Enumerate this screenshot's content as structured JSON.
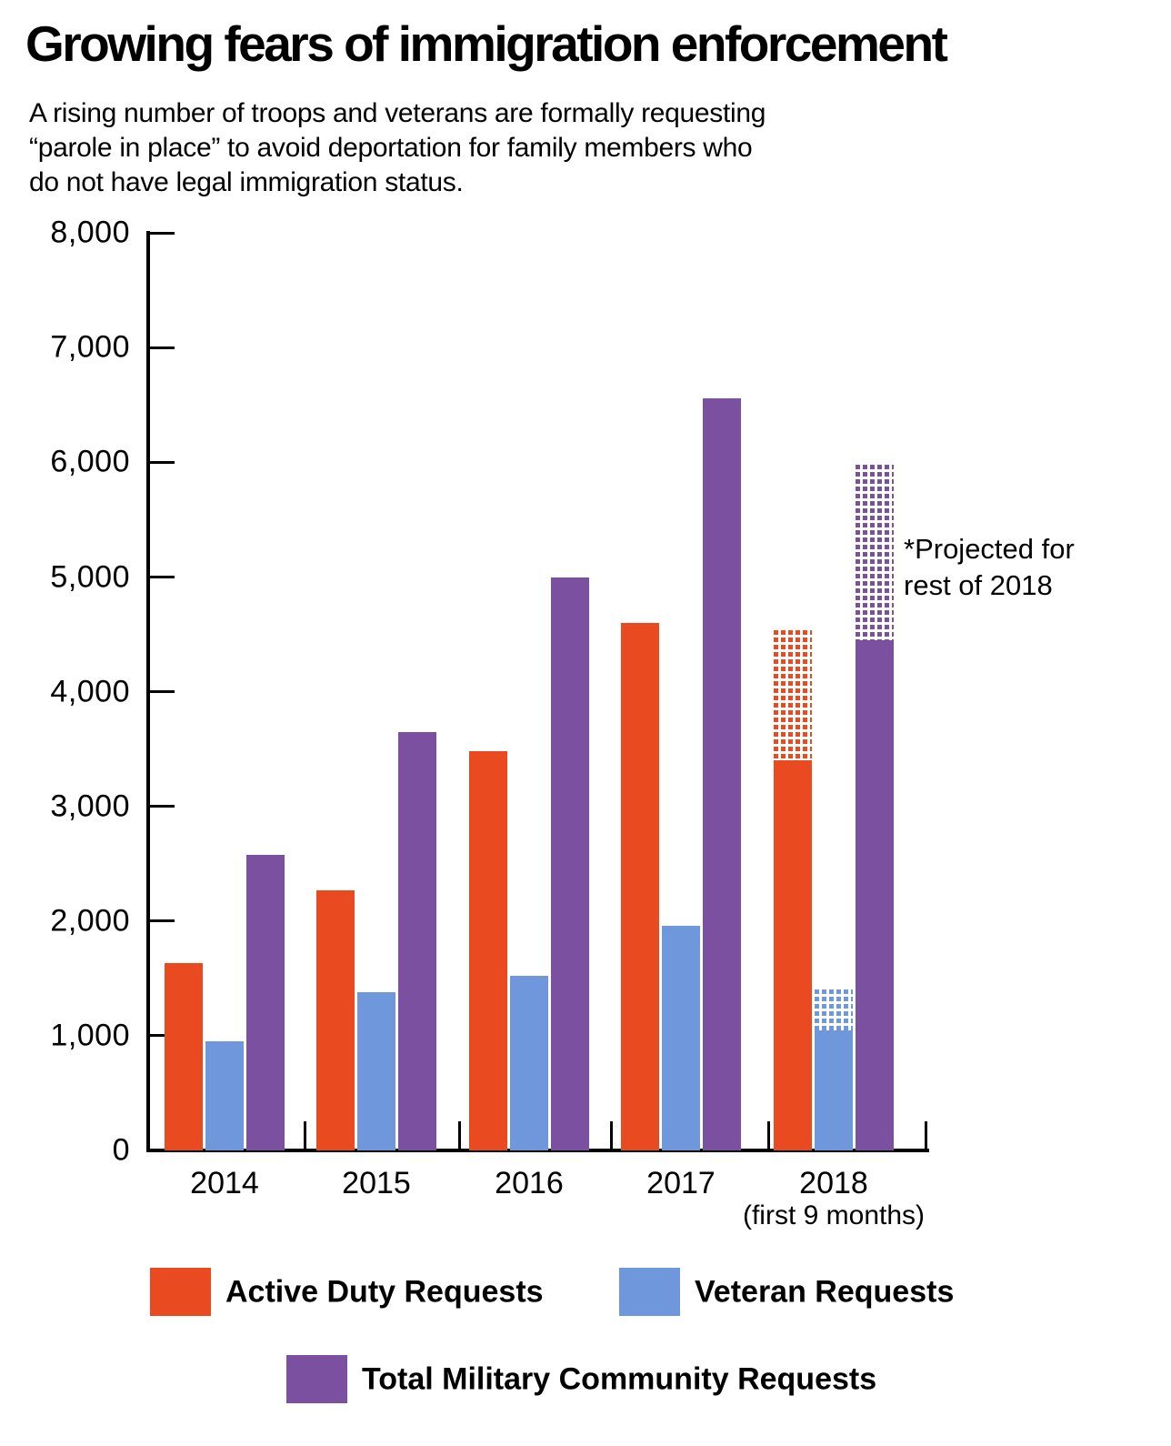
{
  "title": "Growing fears of immigration enforcement",
  "subtitle_lines": [
    "A rising number of troops and veterans are formally requesting",
    "“parole in place” to avoid deportation for family members who",
    "do not have legal immigration status."
  ],
  "annotation": {
    "line1": "*Projected for",
    "line2": "rest of 2018"
  },
  "colors": {
    "active_duty": "#EA4A1F",
    "veteran": "#6F97DC",
    "total": "#7C50A1",
    "axis": "#000000"
  },
  "legend": {
    "active_label": "Active Duty Requests",
    "veteran_label": "Veteran Requests",
    "total_label": "Total Military Community Requests"
  },
  "chart_data": {
    "type": "bar",
    "title": "Growing fears of immigration enforcement",
    "categories": [
      "2014",
      "2015",
      "2016",
      "2017",
      "2018"
    ],
    "category_note": {
      "category": "2018",
      "label": "(first 9 months)"
    },
    "xlabel": "",
    "ylabel": "",
    "y_axis": {
      "min": 0,
      "max": 8000,
      "tick_step": 1000,
      "tick_labels": [
        "0",
        "1,000",
        "2,000",
        "3,000",
        "4,000",
        "5,000",
        "6,000",
        "7,000",
        "8,000"
      ]
    },
    "grid": false,
    "legend_position": "bottom",
    "projection_note": "*Projected for rest of 2018",
    "series": [
      {
        "id": "active",
        "name": "Active Duty Requests",
        "color": "#EA4A1F",
        "values": [
          1630,
          2270,
          3480,
          4600,
          3400
        ],
        "projected_2018_total": 4540,
        "projected_style": "dotted-hatch"
      },
      {
        "id": "veteran",
        "name": "Veteran Requests",
        "color": "#6F97DC",
        "values": [
          950,
          1380,
          1520,
          1960,
          1050
        ],
        "projected_2018_total": 1400,
        "projected_style": "dotted-hatch"
      },
      {
        "id": "total",
        "name": "Total Military Community Requests",
        "color": "#7C50A1",
        "values": [
          2580,
          3650,
          5000,
          6560,
          4450
        ],
        "projected_2018_total": 5980,
        "projected_style": "dotted-hatch"
      }
    ]
  }
}
